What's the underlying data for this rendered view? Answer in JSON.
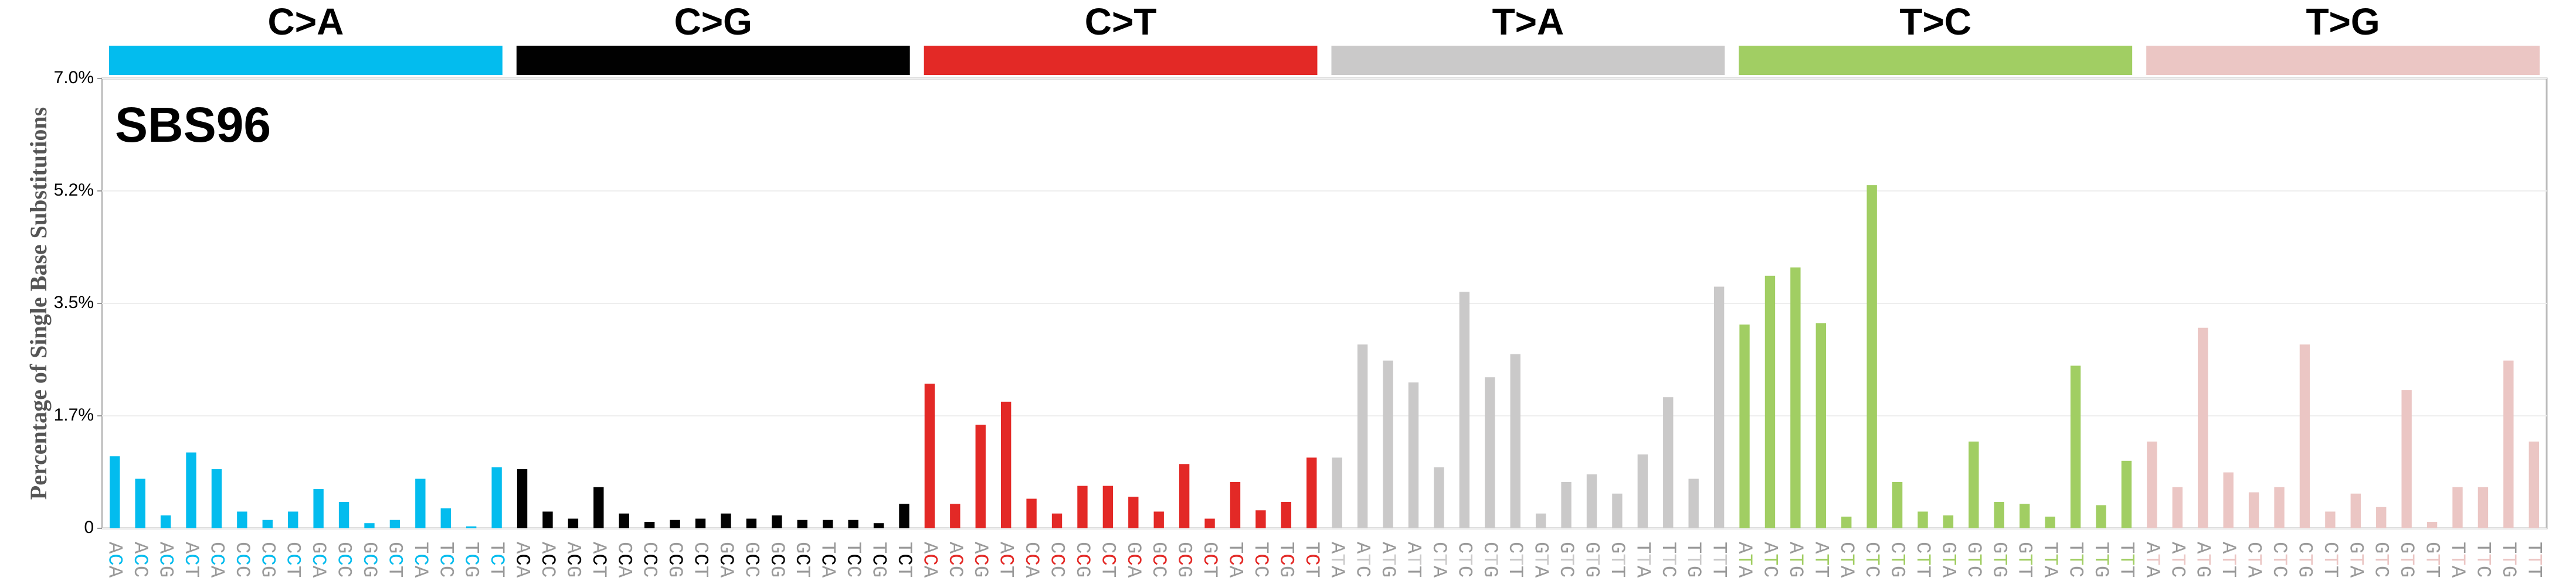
{
  "chart_data": {
    "type": "bar",
    "title": "SBS96",
    "y_label": "Percentage of Single Base Substitutions",
    "ylim": [
      0,
      7.0
    ],
    "yticks": [
      0,
      {
        "value": 1.75,
        "label": "1.7%"
      },
      {
        "value": 3.5,
        "label": "3.5%"
      },
      {
        "value": 5.25,
        "label": "5.2%"
      },
      {
        "value": 7.0,
        "label": "7.0%"
      }
    ],
    "grid": true,
    "series": [
      {
        "name": "C>A",
        "color": "#03bcee",
        "categories": [
          "ACA",
          "ACC",
          "ACG",
          "ACT",
          "CCA",
          "CCC",
          "CCG",
          "CCT",
          "GCA",
          "GCC",
          "GCG",
          "GCT",
          "TCA",
          "TCC",
          "TCG",
          "TCT"
        ],
        "values": [
          1.12,
          0.77,
          0.2,
          1.18,
          0.92,
          0.26,
          0.13,
          0.26,
          0.61,
          0.41,
          0.08,
          0.13,
          0.77,
          0.31,
          0.03,
          0.95
        ]
      },
      {
        "name": "C>G",
        "color": "#010101",
        "categories": [
          "ACA",
          "ACC",
          "ACG",
          "ACT",
          "CCA",
          "CCC",
          "CCG",
          "CCT",
          "GCA",
          "GCC",
          "GCG",
          "GCT",
          "TCA",
          "TCC",
          "TCG",
          "TCT"
        ],
        "values": [
          0.92,
          0.26,
          0.15,
          0.64,
          0.23,
          0.1,
          0.13,
          0.15,
          0.23,
          0.15,
          0.2,
          0.13,
          0.13,
          0.13,
          0.08,
          0.38
        ]
      },
      {
        "name": "C>T",
        "color": "#e32926",
        "categories": [
          "ACA",
          "ACC",
          "ACG",
          "ACT",
          "CCA",
          "CCC",
          "CCG",
          "CCT",
          "GCA",
          "GCC",
          "GCG",
          "GCT",
          "TCA",
          "TCC",
          "TCG",
          "TCT"
        ],
        "values": [
          2.25,
          0.38,
          1.61,
          1.97,
          0.46,
          0.23,
          0.66,
          0.66,
          0.49,
          0.26,
          1.0,
          0.15,
          0.72,
          0.28,
          0.41,
          1.1
        ]
      },
      {
        "name": "T>A",
        "color": "#cac9c9",
        "categories": [
          "ATA",
          "ATC",
          "ATG",
          "ATT",
          "CTA",
          "CTC",
          "CTG",
          "CTT",
          "GTA",
          "GTC",
          "GTG",
          "GTT",
          "TTA",
          "TTC",
          "TTG",
          "TTT"
        ],
        "values": [
          1.1,
          2.86,
          2.61,
          2.27,
          0.95,
          3.68,
          2.35,
          2.71,
          0.23,
          0.72,
          0.84,
          0.54,
          1.15,
          2.04,
          0.77,
          3.76
        ]
      },
      {
        "name": "T>C",
        "color": "#a1ce63",
        "categories": [
          "ATA",
          "ATC",
          "ATG",
          "ATT",
          "CTA",
          "CTC",
          "CTG",
          "CTT",
          "GTA",
          "GTC",
          "GTG",
          "GTT",
          "TTA",
          "TTC",
          "TTG",
          "TTT"
        ],
        "values": [
          3.17,
          3.93,
          4.06,
          3.19,
          0.18,
          5.34,
          0.72,
          0.26,
          0.2,
          1.35,
          0.41,
          0.38,
          0.18,
          2.53,
          0.36,
          1.05
        ]
      },
      {
        "name": "T>G",
        "color": "#ebc6c4",
        "categories": [
          "ATA",
          "ATC",
          "ATG",
          "ATT",
          "CTA",
          "CTC",
          "CTG",
          "CTT",
          "GTA",
          "GTC",
          "GTG",
          "GTT",
          "TTA",
          "TTC",
          "TTG",
          "TTT"
        ],
        "values": [
          1.35,
          0.64,
          3.12,
          0.87,
          0.56,
          0.64,
          2.86,
          0.26,
          0.54,
          0.33,
          2.15,
          0.1,
          0.64,
          0.64,
          2.61,
          1.35
        ]
      }
    ]
  }
}
